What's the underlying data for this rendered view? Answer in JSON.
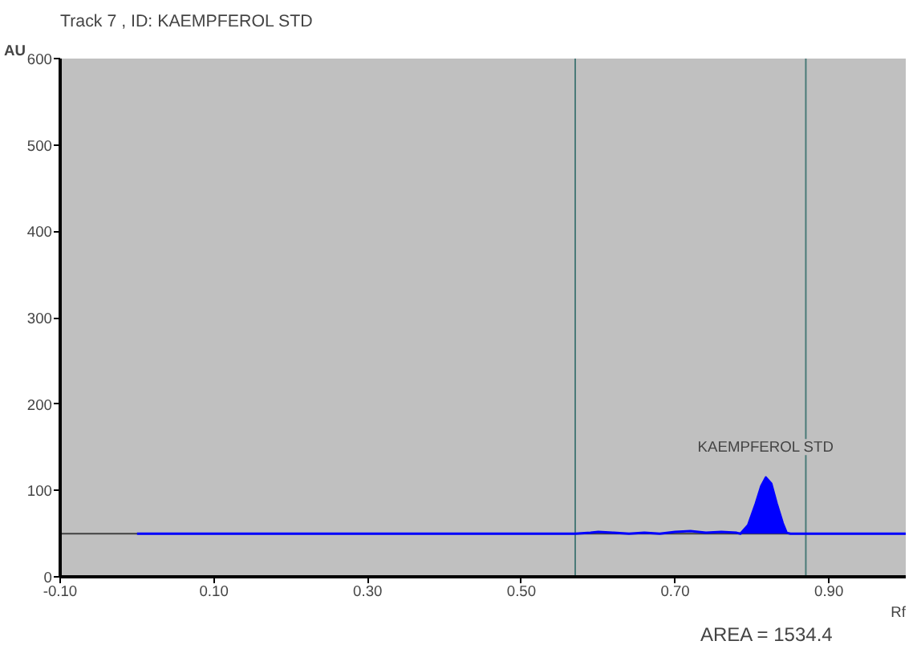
{
  "chart_data": {
    "type": "line",
    "title": "Track  7 , ID: KAEMPFEROL STD",
    "xlabel": "Rf",
    "ylabel": "AU",
    "xlim": [
      -0.1,
      1.0
    ],
    "ylim": [
      0,
      600
    ],
    "xticks": [
      {
        "value": -0.1,
        "label": "-0.10"
      },
      {
        "value": 0.1,
        "label": "0.10"
      },
      {
        "value": 0.3,
        "label": "0.30"
      },
      {
        "value": 0.5,
        "label": "0.50"
      },
      {
        "value": 0.7,
        "label": "0.70"
      },
      {
        "value": 0.9,
        "label": "0.90"
      }
    ],
    "yticks": [
      0,
      100,
      200,
      300,
      400,
      500,
      600
    ],
    "grid": false,
    "series": [
      {
        "color": "#0000ff",
        "x": [
          0.0,
          0.57,
          0.59,
          0.6,
          0.62,
          0.64,
          0.66,
          0.68,
          0.7,
          0.72,
          0.74,
          0.76,
          0.78,
          0.785,
          0.795,
          0.805,
          0.812,
          0.818,
          0.825,
          0.832,
          0.84,
          0.845,
          0.85,
          1.0
        ],
        "values": [
          50,
          50,
          51,
          52,
          51,
          50,
          51,
          50,
          52,
          53,
          51,
          52,
          51,
          50,
          60,
          85,
          105,
          115,
          108,
          85,
          62,
          51,
          50,
          50
        ],
        "lower": [
          null,
          null,
          null,
          null,
          null,
          null,
          null,
          null,
          null,
          null,
          null,
          null,
          null,
          50,
          50,
          50,
          50,
          50,
          50,
          50,
          50,
          50,
          null,
          null
        ],
        "upper": [
          null,
          null,
          null,
          null,
          null,
          null,
          null,
          null,
          null,
          null,
          null,
          null,
          null,
          50,
          60,
          85,
          105,
          115,
          108,
          85,
          62,
          51,
          null,
          null
        ]
      }
    ],
    "ref_lines": [
      {
        "axis": "y",
        "value": 50,
        "color": "#404040"
      },
      {
        "axis": "x",
        "value": 0.57,
        "color": "#4a7a78"
      },
      {
        "axis": "x",
        "value": 0.87,
        "color": "#4a7a78"
      }
    ],
    "annotations": [
      {
        "text": "KAEMPFEROL STD",
        "x": 0.818,
        "y": 115
      },
      "AREA = 1534.4"
    ]
  }
}
